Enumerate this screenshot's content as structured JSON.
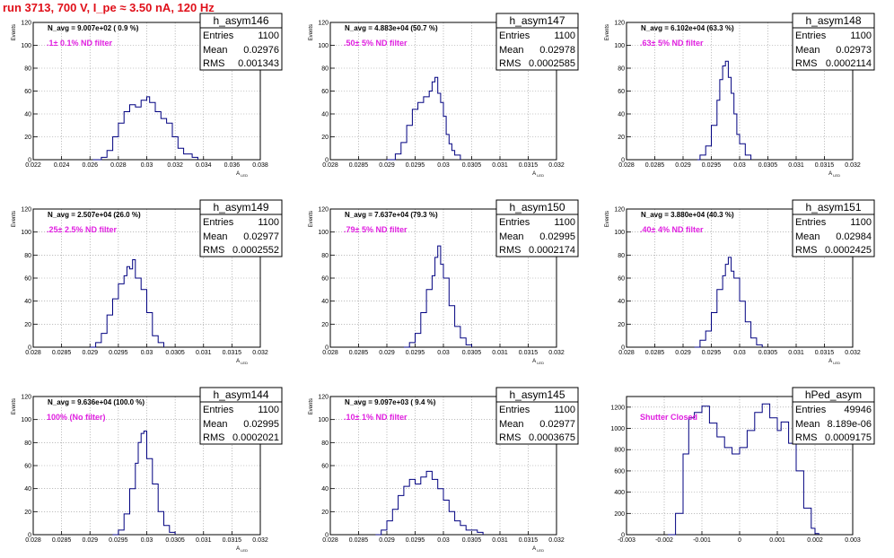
{
  "title": "run 3713,   700 V, I_pe ≈ 3.50 nA, 120 Hz",
  "colors": {
    "title": "#e0101a",
    "histogram": "#000080",
    "annotation": "#e020e0",
    "grid": "#999999"
  },
  "chart_data": [
    {
      "type": "histogram",
      "name": "h_asym146",
      "navg": "N_avg = 9.007e+02 ( 0.9 %)",
      "filter": ".1± 0.1% ND filter",
      "stats": {
        "entries": "1100",
        "mean": "0.02976",
        "rms": "0.001343"
      },
      "xlabel": "A_{LED}",
      "ylabel": "Events",
      "xlim": [
        0.022,
        0.038
      ],
      "ylim": [
        0,
        120
      ],
      "xticks": [
        0.022,
        0.024,
        0.026,
        0.028,
        0.03,
        0.032,
        0.034,
        0.036,
        0.038
      ],
      "xtick_labels": [
        "0.022",
        "0.024",
        "0.026",
        "0.028",
        "0.03",
        "0.032",
        "0.034",
        "0.036",
        "0.038"
      ],
      "yticks": [
        0,
        20,
        40,
        60,
        80,
        100,
        120
      ],
      "peak": 55,
      "center": 0.0298,
      "width": 0.00134,
      "points": [
        [
          0.0262,
          0
        ],
        [
          0.0268,
          2
        ],
        [
          0.0272,
          8
        ],
        [
          0.0276,
          20
        ],
        [
          0.028,
          32
        ],
        [
          0.0284,
          42
        ],
        [
          0.0288,
          48
        ],
        [
          0.0292,
          46
        ],
        [
          0.0296,
          52
        ],
        [
          0.03,
          55
        ],
        [
          0.0302,
          50
        ],
        [
          0.0306,
          42
        ],
        [
          0.031,
          36
        ],
        [
          0.0314,
          32
        ],
        [
          0.0318,
          20
        ],
        [
          0.0322,
          10
        ],
        [
          0.0326,
          5
        ],
        [
          0.0332,
          2
        ],
        [
          0.0336,
          0
        ]
      ]
    },
    {
      "type": "histogram",
      "name": "h_asym147",
      "navg": "N_avg = 4.883e+04 (50.7 %)",
      "filter": ".50± 5% ND filter",
      "stats": {
        "entries": "1100",
        "mean": "0.02978",
        "rms": "0.0002585"
      },
      "xlabel": "A_{LED}",
      "ylabel": "Events",
      "xlim": [
        0.028,
        0.032
      ],
      "ylim": [
        0,
        120
      ],
      "xticks": [
        0.028,
        0.0285,
        0.029,
        0.0295,
        0.03,
        0.0305,
        0.031,
        0.0315,
        0.032
      ],
      "xtick_labels": [
        "0.028",
        "0.0285",
        "0.029",
        "0.0295",
        "0.03",
        "0.0305",
        "0.031",
        "0.0315",
        "0.032"
      ],
      "yticks": [
        0,
        20,
        40,
        60,
        80,
        100,
        120
      ],
      "points": [
        [
          0.029,
          0
        ],
        [
          0.02915,
          5
        ],
        [
          0.02925,
          15
        ],
        [
          0.02935,
          30
        ],
        [
          0.02945,
          44
        ],
        [
          0.02955,
          50
        ],
        [
          0.02965,
          55
        ],
        [
          0.02975,
          60
        ],
        [
          0.0298,
          68
        ],
        [
          0.02985,
          72
        ],
        [
          0.0299,
          58
        ],
        [
          0.02995,
          50
        ],
        [
          0.03,
          38
        ],
        [
          0.03005,
          22
        ],
        [
          0.0301,
          14
        ],
        [
          0.03015,
          8
        ],
        [
          0.0302,
          4
        ],
        [
          0.0303,
          0
        ]
      ]
    },
    {
      "type": "histogram",
      "name": "h_asym148",
      "navg": "N_avg = 6.102e+04 (63.3 %)",
      "filter": ".63± 5% ND filter",
      "stats": {
        "entries": "1100",
        "mean": "0.02973",
        "rms": "0.0002114"
      },
      "xlabel": "A_{LED}",
      "ylabel": "Events",
      "xlim": [
        0.028,
        0.032
      ],
      "ylim": [
        0,
        120
      ],
      "xticks": [
        0.028,
        0.0285,
        0.029,
        0.0295,
        0.03,
        0.0305,
        0.031,
        0.0315,
        0.032
      ],
      "xtick_labels": [
        "0.028",
        "0.0285",
        "0.029",
        "0.0295",
        "0.03",
        "0.0305",
        "0.031",
        "0.0315",
        "0.032"
      ],
      "yticks": [
        0,
        20,
        40,
        60,
        80,
        100,
        120
      ],
      "points": [
        [
          0.02925,
          0
        ],
        [
          0.0293,
          4
        ],
        [
          0.0294,
          12
        ],
        [
          0.0295,
          30
        ],
        [
          0.0296,
          52
        ],
        [
          0.02965,
          70
        ],
        [
          0.0297,
          82
        ],
        [
          0.02975,
          86
        ],
        [
          0.0298,
          72
        ],
        [
          0.02985,
          58
        ],
        [
          0.0299,
          40
        ],
        [
          0.02995,
          22
        ],
        [
          0.03,
          14
        ],
        [
          0.0301,
          4
        ],
        [
          0.0302,
          0
        ]
      ]
    },
    {
      "type": "histogram",
      "name": "h_asym149",
      "navg": "N_avg = 2.507e+04 (26.0 %)",
      "filter": ".25± 2.5% ND filter",
      "stats": {
        "entries": "1100",
        "mean": "0.02977",
        "rms": "0.0002552"
      },
      "xlabel": "A_{LED}",
      "ylabel": "Events",
      "xlim": [
        0.028,
        0.032
      ],
      "ylim": [
        0,
        120
      ],
      "xticks": [
        0.028,
        0.0285,
        0.029,
        0.0295,
        0.03,
        0.0305,
        0.031,
        0.0315,
        0.032
      ],
      "xtick_labels": [
        "0.028",
        "0.0285",
        "0.029",
        "0.0295",
        "0.03",
        "0.0305",
        "0.031",
        "0.0315",
        "0.032"
      ],
      "yticks": [
        0,
        20,
        40,
        60,
        80,
        100,
        120
      ],
      "points": [
        [
          0.029,
          0
        ],
        [
          0.0291,
          4
        ],
        [
          0.0292,
          12
        ],
        [
          0.0293,
          28
        ],
        [
          0.0294,
          42
        ],
        [
          0.0295,
          55
        ],
        [
          0.0296,
          62
        ],
        [
          0.02965,
          70
        ],
        [
          0.0297,
          68
        ],
        [
          0.02975,
          76
        ],
        [
          0.0298,
          60
        ],
        [
          0.0299,
          50
        ],
        [
          0.03,
          30
        ],
        [
          0.0301,
          10
        ],
        [
          0.0302,
          4
        ],
        [
          0.0303,
          0
        ]
      ]
    },
    {
      "type": "histogram",
      "name": "h_asym150",
      "navg": "N_avg = 7.637e+04 (79.3 %)",
      "filter": ".79± 5% ND filter",
      "stats": {
        "entries": "1100",
        "mean": "0.02995",
        "rms": "0.0002174"
      },
      "xlabel": "A_{LED}",
      "ylabel": "Events",
      "xlim": [
        0.028,
        0.032
      ],
      "ylim": [
        0,
        120
      ],
      "xticks": [
        0.028,
        0.0285,
        0.029,
        0.0295,
        0.03,
        0.0305,
        0.031,
        0.0315,
        0.032
      ],
      "xtick_labels": [
        "0.028",
        "0.0285",
        "0.029",
        "0.0295",
        "0.03",
        "0.0305",
        "0.031",
        "0.0315",
        "0.032"
      ],
      "yticks": [
        0,
        20,
        40,
        60,
        80,
        100,
        120
      ],
      "points": [
        [
          0.0293,
          0
        ],
        [
          0.0294,
          4
        ],
        [
          0.0295,
          12
        ],
        [
          0.0296,
          30
        ],
        [
          0.0297,
          50
        ],
        [
          0.0298,
          62
        ],
        [
          0.02985,
          78
        ],
        [
          0.0299,
          88
        ],
        [
          0.02995,
          72
        ],
        [
          0.03,
          60
        ],
        [
          0.0301,
          36
        ],
        [
          0.0302,
          18
        ],
        [
          0.0303,
          8
        ],
        [
          0.0304,
          2
        ],
        [
          0.0305,
          0
        ]
      ]
    },
    {
      "type": "histogram",
      "name": "h_asym151",
      "navg": "N_avg = 3.880e+04 (40.3 %)",
      "filter": ".40± 4% ND filter",
      "stats": {
        "entries": "1100",
        "mean": "0.02984",
        "rms": "0.0002425"
      },
      "xlabel": "A_{LED}",
      "ylabel": "Events",
      "xlim": [
        0.028,
        0.032
      ],
      "ylim": [
        0,
        120
      ],
      "xticks": [
        0.028,
        0.0285,
        0.029,
        0.0295,
        0.03,
        0.0305,
        0.031,
        0.0315,
        0.032
      ],
      "xtick_labels": [
        "0.028",
        "0.0285",
        "0.029",
        "0.0295",
        "0.03",
        "0.0305",
        "0.031",
        "0.0315",
        "0.032"
      ],
      "yticks": [
        0,
        20,
        40,
        60,
        80,
        100,
        120
      ],
      "points": [
        [
          0.0292,
          0
        ],
        [
          0.0293,
          6
        ],
        [
          0.0294,
          14
        ],
        [
          0.0295,
          30
        ],
        [
          0.0296,
          50
        ],
        [
          0.0297,
          62
        ],
        [
          0.02975,
          72
        ],
        [
          0.0298,
          78
        ],
        [
          0.02985,
          66
        ],
        [
          0.0299,
          60
        ],
        [
          0.03,
          40
        ],
        [
          0.0301,
          22
        ],
        [
          0.0302,
          8
        ],
        [
          0.0303,
          2
        ],
        [
          0.0304,
          0
        ]
      ]
    },
    {
      "type": "histogram",
      "name": "h_asym144",
      "navg": "N_avg = 9.636e+04 (100.0 %)",
      "filter": "100% (No filter)",
      "stats": {
        "entries": "1100",
        "mean": "0.02995",
        "rms": "0.0002021"
      },
      "xlabel": "A_{LED}",
      "ylabel": "Events",
      "xlim": [
        0.028,
        0.032
      ],
      "ylim": [
        0,
        120
      ],
      "xticks": [
        0.028,
        0.0285,
        0.029,
        0.0295,
        0.03,
        0.0305,
        0.031,
        0.0315,
        0.032
      ],
      "xtick_labels": [
        "0.028",
        "0.0285",
        "0.029",
        "0.0295",
        "0.03",
        "0.0305",
        "0.031",
        "0.0315",
        "0.032"
      ],
      "yticks": [
        0,
        20,
        40,
        60,
        80,
        100,
        120
      ],
      "points": [
        [
          0.0294,
          0
        ],
        [
          0.0295,
          4
        ],
        [
          0.0296,
          18
        ],
        [
          0.0297,
          40
        ],
        [
          0.0298,
          62
        ],
        [
          0.02985,
          80
        ],
        [
          0.0299,
          88
        ],
        [
          0.02995,
          90
        ],
        [
          0.03,
          66
        ],
        [
          0.0301,
          44
        ],
        [
          0.0302,
          20
        ],
        [
          0.0303,
          8
        ],
        [
          0.0304,
          2
        ],
        [
          0.0305,
          0
        ]
      ]
    },
    {
      "type": "histogram",
      "name": "h_asym145",
      "navg": "N_avg = 9.097e+03 ( 9.4 %)",
      "filter": ".10± 1% ND filter",
      "stats": {
        "entries": "1100",
        "mean": "0.02977",
        "rms": "0.0003675"
      },
      "xlabel": "A_{LED}",
      "ylabel": "Events",
      "xlim": [
        0.028,
        0.032
      ],
      "ylim": [
        0,
        120
      ],
      "xticks": [
        0.028,
        0.0285,
        0.029,
        0.0295,
        0.03,
        0.0305,
        0.031,
        0.0315,
        0.032
      ],
      "xtick_labels": [
        "0.028",
        "0.0285",
        "0.029",
        "0.0295",
        "0.03",
        "0.0305",
        "0.031",
        "0.0315",
        "0.032"
      ],
      "yticks": [
        0,
        20,
        40,
        60,
        80,
        100,
        120
      ],
      "points": [
        [
          0.0288,
          0
        ],
        [
          0.0289,
          4
        ],
        [
          0.029,
          12
        ],
        [
          0.0291,
          22
        ],
        [
          0.0292,
          34
        ],
        [
          0.0293,
          42
        ],
        [
          0.0294,
          48
        ],
        [
          0.0295,
          44
        ],
        [
          0.0296,
          50
        ],
        [
          0.0297,
          55
        ],
        [
          0.0298,
          48
        ],
        [
          0.0299,
          40
        ],
        [
          0.03,
          30
        ],
        [
          0.0301,
          20
        ],
        [
          0.0302,
          12
        ],
        [
          0.0303,
          8
        ],
        [
          0.0304,
          4
        ],
        [
          0.0306,
          2
        ],
        [
          0.0307,
          0
        ]
      ]
    },
    {
      "type": "histogram",
      "name": "hPed_asym",
      "navg": "",
      "filter": "Shutter Closed",
      "stats": {
        "entries": "49946",
        "mean": "8.189e-06",
        "rms": "0.0009175"
      },
      "xlabel": "",
      "ylabel": "",
      "xlim": [
        -0.003,
        0.003
      ],
      "ylim": [
        0,
        1300
      ],
      "xticks": [
        -0.003,
        -0.002,
        -0.001,
        0,
        0.001,
        0.002,
        0.003
      ],
      "xtick_labels": [
        "-0.003",
        "-0.002",
        "-0.001",
        "0",
        "0.001",
        "0.002",
        "0.003"
      ],
      "yticks": [
        0,
        200,
        400,
        600,
        800,
        1000,
        1200
      ],
      "points": [
        [
          -0.0019,
          0
        ],
        [
          -0.0017,
          200
        ],
        [
          -0.0015,
          760
        ],
        [
          -0.00135,
          1100
        ],
        [
          -0.0012,
          1150
        ],
        [
          -0.001,
          1210
        ],
        [
          -0.0008,
          1050
        ],
        [
          -0.0006,
          920
        ],
        [
          -0.0004,
          820
        ],
        [
          -0.0002,
          760
        ],
        [
          0.0,
          820
        ],
        [
          0.0002,
          980
        ],
        [
          0.0004,
          1150
        ],
        [
          0.0006,
          1230
        ],
        [
          0.0008,
          1100
        ],
        [
          0.001,
          980
        ],
        [
          0.0011,
          1060
        ],
        [
          0.0013,
          860
        ],
        [
          0.0015,
          600
        ],
        [
          0.0017,
          250
        ],
        [
          0.0019,
          60
        ],
        [
          0.002,
          10
        ],
        [
          0.0021,
          0
        ]
      ]
    }
  ]
}
